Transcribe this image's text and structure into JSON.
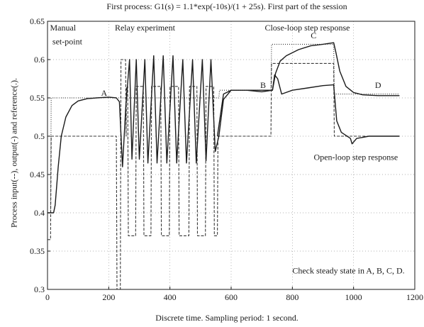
{
  "chart_data": {
    "type": "line",
    "title": "First process: G1(s) = 1.1*exp(-10s)/(1 + 25s). First part of the session",
    "xlabel": "Discrete time. Sampling period: 1 second.",
    "ylabel": "Process input(--), output(-) and reference(.).",
    "xlim": [
      0,
      1200
    ],
    "ylim": [
      0.3,
      0.65
    ],
    "x_ticks": [
      "0",
      "200",
      "400",
      "600",
      "800",
      "1000",
      "1200"
    ],
    "y_ticks": [
      "0.3",
      "0.35",
      "0.4",
      "0.45",
      "0.5",
      "0.55",
      "0.6",
      "0.65"
    ],
    "grid": true,
    "series": [
      {
        "name": "input",
        "style": "dashed",
        "points": [
          [
            0,
            0.365
          ],
          [
            10,
            0.365
          ],
          [
            12,
            0.5
          ],
          [
            225,
            0.5
          ],
          [
            227,
            0.3
          ],
          [
            238,
            0.3
          ],
          [
            240,
            0.6
          ],
          [
            255,
            0.6
          ],
          [
            257,
            0.5
          ],
          [
            258,
            0.565
          ],
          [
            262,
            0.565
          ],
          [
            264,
            0.37
          ],
          [
            288,
            0.37
          ],
          [
            290,
            0.565
          ],
          [
            313,
            0.565
          ],
          [
            315,
            0.37
          ],
          [
            338,
            0.37
          ],
          [
            340,
            0.565
          ],
          [
            370,
            0.565
          ],
          [
            372,
            0.37
          ],
          [
            398,
            0.37
          ],
          [
            400,
            0.565
          ],
          [
            428,
            0.565
          ],
          [
            430,
            0.37
          ],
          [
            462,
            0.37
          ],
          [
            464,
            0.565
          ],
          [
            488,
            0.565
          ],
          [
            490,
            0.37
          ],
          [
            516,
            0.37
          ],
          [
            518,
            0.565
          ],
          [
            543,
            0.565
          ],
          [
            545,
            0.37
          ],
          [
            555,
            0.37
          ],
          [
            557,
            0.5
          ],
          [
            730,
            0.5
          ],
          [
            732,
            0.595
          ],
          [
            935,
            0.595
          ],
          [
            937,
            0.5
          ],
          [
            1150,
            0.5
          ]
        ]
      },
      {
        "name": "output",
        "style": "solid",
        "points": [
          [
            0,
            0.4
          ],
          [
            20,
            0.4
          ],
          [
            25,
            0.41
          ],
          [
            35,
            0.46
          ],
          [
            45,
            0.5
          ],
          [
            60,
            0.525
          ],
          [
            80,
            0.54
          ],
          [
            100,
            0.546
          ],
          [
            130,
            0.549
          ],
          [
            160,
            0.55
          ],
          [
            200,
            0.551
          ],
          [
            225,
            0.55
          ],
          [
            235,
            0.545
          ],
          [
            245,
            0.46
          ],
          [
            256,
            0.54
          ],
          [
            268,
            0.6
          ],
          [
            276,
            0.47
          ],
          [
            290,
            0.6
          ],
          [
            300,
            0.47
          ],
          [
            318,
            0.6
          ],
          [
            328,
            0.465
          ],
          [
            347,
            0.605
          ],
          [
            358,
            0.465
          ],
          [
            378,
            0.605
          ],
          [
            390,
            0.465
          ],
          [
            410,
            0.605
          ],
          [
            422,
            0.465
          ],
          [
            442,
            0.6
          ],
          [
            454,
            0.465
          ],
          [
            474,
            0.6
          ],
          [
            486,
            0.465
          ],
          [
            506,
            0.6
          ],
          [
            518,
            0.468
          ],
          [
            534,
            0.6
          ],
          [
            548,
            0.48
          ],
          [
            560,
            0.5
          ],
          [
            575,
            0.548
          ],
          [
            600,
            0.56
          ],
          [
            650,
            0.56
          ],
          [
            700,
            0.56
          ],
          [
            735,
            0.56
          ],
          [
            742,
            0.58
          ],
          [
            752,
            0.575
          ],
          [
            765,
            0.555
          ],
          [
            800,
            0.56
          ],
          [
            850,
            0.563
          ],
          [
            900,
            0.566
          ],
          [
            935,
            0.567
          ],
          [
            945,
            0.52
          ],
          [
            960,
            0.505
          ],
          [
            990,
            0.497
          ],
          [
            995,
            0.49
          ],
          [
            1010,
            0.497
          ],
          [
            1050,
            0.5
          ],
          [
            1100,
            0.5
          ],
          [
            1150,
            0.5
          ]
        ]
      },
      {
        "name": "output",
        "style": "solid",
        "points": [
          [
            555,
            0.5
          ],
          [
            575,
            0.555
          ],
          [
            600,
            0.56
          ],
          [
            650,
            0.56
          ],
          [
            700,
            0.558
          ],
          [
            735,
            0.56
          ],
          [
            745,
            0.582
          ],
          [
            760,
            0.598
          ],
          [
            780,
            0.605
          ],
          [
            820,
            0.613
          ],
          [
            860,
            0.618
          ],
          [
            900,
            0.62
          ],
          [
            935,
            0.622
          ],
          [
            942,
            0.61
          ],
          [
            955,
            0.585
          ],
          [
            975,
            0.565
          ],
          [
            1000,
            0.557
          ],
          [
            1030,
            0.554
          ],
          [
            1080,
            0.553
          ],
          [
            1150,
            0.553
          ]
        ]
      },
      {
        "name": "reference",
        "style": "dotted",
        "points": [
          [
            0,
            0.4
          ],
          [
            10,
            0.4
          ],
          [
            12,
            0.55
          ],
          [
            560,
            0.55
          ],
          [
            562,
            0.56
          ],
          [
            730,
            0.56
          ],
          [
            732,
            0.62
          ],
          [
            935,
            0.62
          ],
          [
            937,
            0.555
          ],
          [
            1150,
            0.555
          ]
        ]
      }
    ],
    "annotations": [
      {
        "text": "Manual",
        "x": 8,
        "y": 0.638
      },
      {
        "text": "set-point",
        "x": 16,
        "y": 0.62
      },
      {
        "text": "Relay experiment",
        "x": 220,
        "y": 0.638
      },
      {
        "text": "Close-loop step response",
        "x": 710,
        "y": 0.638
      },
      {
        "text": "A",
        "x": 175,
        "y": 0.553
      },
      {
        "text": "B",
        "x": 695,
        "y": 0.563
      },
      {
        "text": "C",
        "x": 860,
        "y": 0.628
      },
      {
        "text": "D",
        "x": 1070,
        "y": 0.563
      },
      {
        "text": "Open-loop step response",
        "x": 870,
        "y": 0.469
      },
      {
        "text": "Check steady state in A, B, C, D.",
        "x": 800,
        "y": 0.321
      }
    ]
  }
}
